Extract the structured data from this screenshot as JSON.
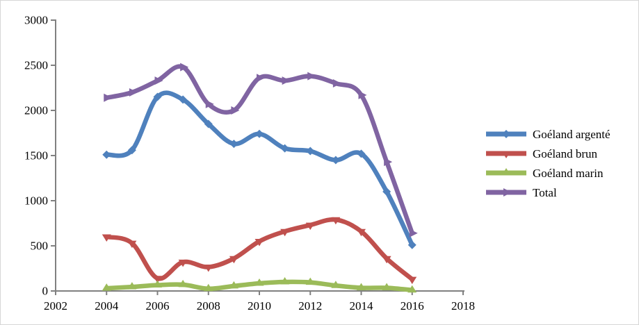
{
  "chart_data": {
    "type": "line",
    "title": "",
    "xlabel": "",
    "ylabel": "",
    "x": [
      2004,
      2005,
      2006,
      2007,
      2008,
      2009,
      2010,
      2011,
      2012,
      2013,
      2014,
      2015,
      2016
    ],
    "series": [
      {
        "name": "Goéland argenté",
        "color": "#4F81BD",
        "marker": "diamond",
        "values": [
          1510,
          1560,
          2150,
          2120,
          1850,
          1630,
          1740,
          1580,
          1550,
          1450,
          1520,
          1100,
          510
        ]
      },
      {
        "name": "Goéland brun",
        "color": "#C0504D",
        "marker": "triangle-down",
        "values": [
          600,
          530,
          140,
          320,
          265,
          360,
          550,
          660,
          730,
          790,
          660,
          360,
          130
        ]
      },
      {
        "name": "Goéland marin",
        "color": "#9BBB59",
        "marker": "triangle-up",
        "values": [
          30,
          45,
          65,
          70,
          25,
          55,
          85,
          100,
          95,
          60,
          35,
          35,
          10
        ]
      },
      {
        "name": "Total",
        "color": "#8064A2",
        "marker": "arrow-right",
        "values": [
          2140,
          2200,
          2330,
          2480,
          2070,
          2000,
          2360,
          2330,
          2380,
          2300,
          2170,
          1430,
          640
        ]
      }
    ],
    "x_axis": {
      "min": 2002,
      "max": 2018,
      "tick_step": 2,
      "tick_labels": [
        "2002",
        "2004",
        "2006",
        "2008",
        "2010",
        "2012",
        "2014",
        "2016",
        "2018"
      ]
    },
    "y_axis": {
      "min": 0,
      "max": 3000,
      "tick_step": 500,
      "tick_labels": [
        "0",
        "500",
        "1000",
        "1500",
        "2000",
        "2500",
        "3000"
      ]
    },
    "grid": false,
    "legend_position": "right",
    "smooth": true
  },
  "style": {
    "background": "#ffffff",
    "border_color": "#d6d6d6",
    "axis_color": "#808080",
    "tick_label_color": "#000000",
    "tick_font_size": 17,
    "line_width": 6.5
  }
}
